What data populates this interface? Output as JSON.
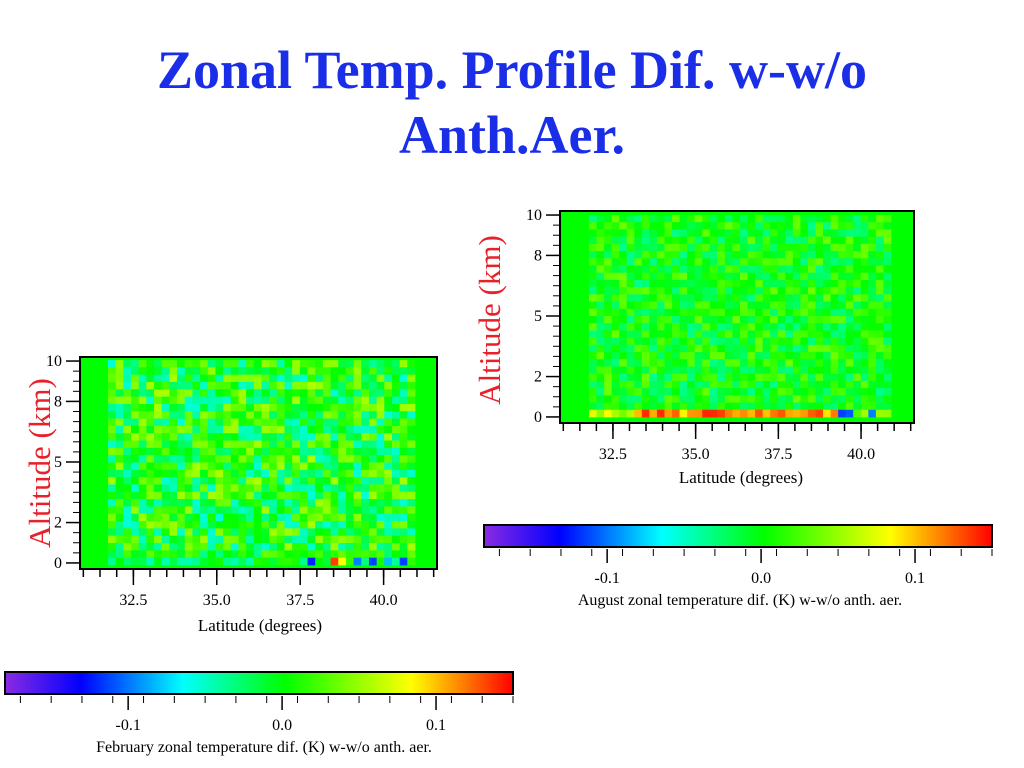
{
  "slide": {
    "title_line1": "Zonal Temp. Profile Dif. w-w/o",
    "title_line2": "Anth.Aer."
  },
  "colors": {
    "title": "#1a2ee8",
    "ylabel": "#e8202a"
  },
  "chart_data": [
    {
      "type": "heatmap",
      "id": "february",
      "title": "",
      "xlabel": "Latitude (degrees)",
      "ylabel": "Altitude (km)",
      "xlim": [
        30.9,
        41.6
      ],
      "ylim": [
        -0.3,
        10.2
      ],
      "x_ticks": [
        "32.5",
        "35.0",
        "37.5",
        "40.0"
      ],
      "x_tick_values": [
        32.5,
        35.0,
        37.5,
        40.0
      ],
      "y_ticks": [
        "0",
        "2",
        "5",
        "8",
        "10"
      ],
      "y_tick_values": [
        0,
        2,
        5,
        8,
        10
      ],
      "colorbar": {
        "label": "February zonal temperature dif. (K) w-w/o anth. aer.",
        "ticks": [
          "-0.1",
          "0.0",
          "0.1"
        ],
        "tick_values": [
          -0.1,
          0.0,
          0.1
        ],
        "range": [
          -0.18,
          0.15
        ]
      }
    },
    {
      "type": "heatmap",
      "id": "august",
      "title": "",
      "xlabel": "Latitude (degrees)",
      "ylabel": "Altitude (km)",
      "xlim": [
        30.9,
        41.6
      ],
      "ylim": [
        -0.3,
        10.2
      ],
      "x_ticks": [
        "32.5",
        "35.0",
        "37.5",
        "40.0"
      ],
      "x_tick_values": [
        32.5,
        35.0,
        37.5,
        40.0
      ],
      "y_ticks": [
        "0",
        "2",
        "5",
        "8",
        "10"
      ],
      "y_tick_values": [
        0,
        2,
        5,
        8,
        10
      ],
      "colorbar": {
        "label": "August zonal temperature dif. (K) w-w/o anth. aer.",
        "ticks": [
          "-0.1",
          "0.0",
          "0.1"
        ],
        "tick_values": [
          -0.1,
          0.0,
          0.1
        ],
        "range": [
          -0.18,
          0.15
        ]
      }
    }
  ]
}
